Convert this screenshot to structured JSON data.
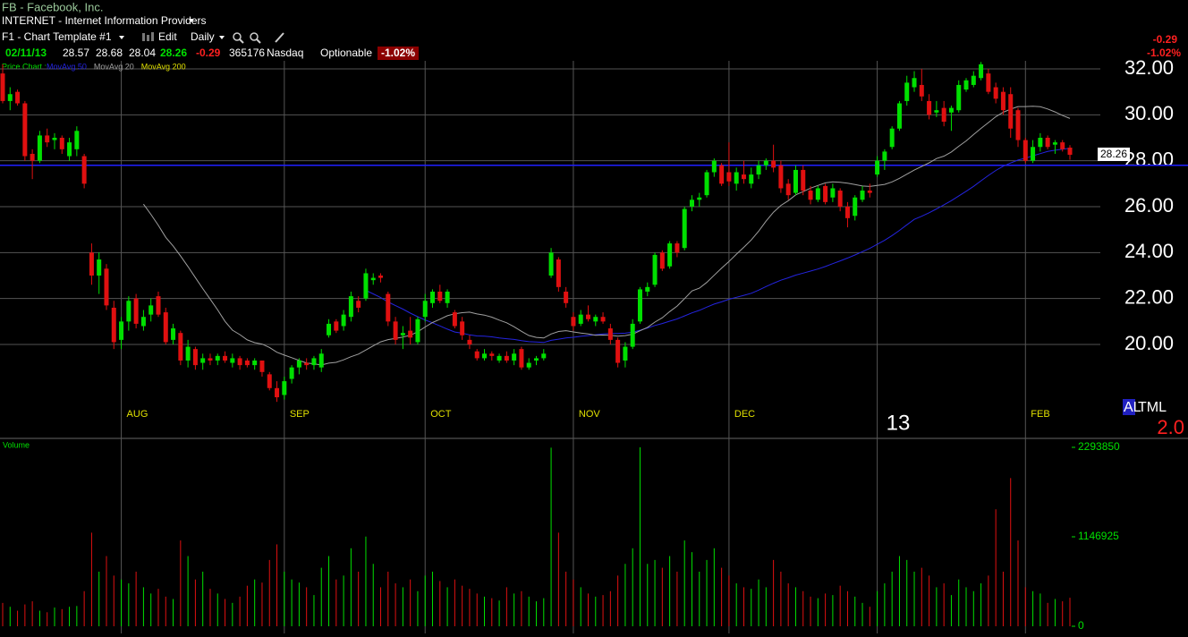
{
  "header": {
    "symbol": "FB - Facebook, Inc.",
    "industry": "INTERNET - Internet Information Providers",
    "template": "F1 - Chart Template #1",
    "edit": "Edit",
    "period": "Daily",
    "date": "02/11/13",
    "open": "28.57",
    "high": "28.68",
    "low": "28.04",
    "last": "28.26",
    "change": "-0.29",
    "volume": "365176",
    "exchange": "Nasdaq",
    "optionable": "Optionable",
    "change_percent": "-1.02%",
    "side_change": "-0.29",
    "side_change_percent": "-1.02%",
    "price_chart_label": "Price Chart :",
    "volume_label": "Volume",
    "badge_a": "AL",
    "badge_b": "TML",
    "badge_value": "2.0"
  },
  "chart_data": {
    "type": "candlestick",
    "categories": [
      null,
      null,
      null,
      null,
      null,
      null,
      null,
      null,
      null,
      null,
      null,
      null,
      null,
      null,
      null,
      null,
      "AUG",
      null,
      null,
      null,
      null,
      null,
      null,
      null,
      null,
      null,
      null,
      null,
      null,
      null,
      null,
      null,
      null,
      null,
      null,
      null,
      null,
      null,
      "SEP",
      null,
      null,
      null,
      null,
      null,
      null,
      null,
      null,
      null,
      null,
      null,
      null,
      null,
      null,
      null,
      null,
      null,
      null,
      "OCT",
      null,
      null,
      null,
      null,
      null,
      null,
      null,
      null,
      null,
      null,
      null,
      null,
      null,
      null,
      null,
      null,
      null,
      null,
      null,
      "NOV",
      null,
      null,
      null,
      null,
      null,
      null,
      null,
      null,
      null,
      null,
      null,
      null,
      null,
      null,
      null,
      null,
      null,
      null,
      null,
      null,
      "DEC",
      null,
      null,
      null,
      null,
      null,
      null,
      null,
      null,
      null,
      null,
      null,
      null,
      null,
      null,
      null,
      null,
      null,
      null,
      null,
      "13",
      null,
      null,
      null,
      null,
      null,
      null,
      null,
      null,
      null,
      null,
      null,
      null,
      null,
      null,
      null,
      null,
      null,
      null,
      null,
      "FEB",
      null,
      null,
      null,
      null,
      null,
      null
    ],
    "open": [
      31.8,
      30.6,
      31.0,
      30.5,
      28.3,
      28.0,
      29.1,
      28.9,
      29.0,
      28.2,
      28.5,
      28.2,
      24.0,
      23.0,
      23.3,
      21.6,
      20.2,
      21.0,
      22.0,
      20.8,
      21.3,
      22.1,
      21.4,
      20.2,
      20.5,
      19.3,
      19.8,
      19.2,
      19.4,
      19.3,
      19.5,
      19.2,
      19.4,
      19.3,
      19.1,
      19.3,
      18.7,
      18.1,
      17.8,
      18.5,
      19.0,
      19.2,
      19.1,
      19.0,
      20.4,
      21.0,
      20.8,
      21.2,
      21.9,
      22.0,
      22.8,
      23.0,
      22.2,
      21.0,
      20.4,
      20.6,
      20.1,
      21.2,
      21.8,
      22.3,
      21.8,
      21.4,
      21.0,
      20.2,
      19.7,
      19.4,
      19.6,
      19.3,
      19.5,
      19.3,
      19.8,
      19.0,
      19.3,
      19.4,
      23.0,
      23.7,
      22.3,
      21.2,
      20.9,
      21.3,
      21.0,
      21.2,
      20.7,
      20.2,
      19.3,
      19.9,
      21.0,
      22.3,
      22.6,
      24.0,
      23.4,
      24.4,
      24.2,
      26.0,
      26.3,
      26.5,
      27.5,
      27.8,
      27.5,
      27.0,
      27.4,
      27.0,
      27.4,
      27.8,
      28.0,
      27.8,
      27.0,
      26.6,
      27.6,
      26.7,
      26.3,
      26.9,
      26.4,
      26.7,
      26.0,
      25.6,
      26.3,
      26.7,
      27.4,
      28.0,
      28.6,
      29.4,
      30.6,
      31.2,
      31.3,
      30.6,
      30.1,
      30.3,
      30.1,
      30.2,
      31.1,
      31.3,
      31.6,
      31.8,
      31.2,
      31.0,
      30.9,
      30.2,
      28.9,
      28.0,
      28.6,
      29.0,
      28.7,
      28.8,
      28.57
    ],
    "high": [
      32.2,
      31.2,
      31.1,
      30.6,
      28.5,
      29.3,
      29.4,
      29.2,
      29.1,
      29.0,
      29.5,
      28.3,
      24.4,
      24.0,
      23.5,
      21.9,
      21.2,
      22.1,
      22.2,
      21.5,
      22.0,
      22.3,
      21.6,
      20.9,
      20.6,
      20.2,
      19.9,
      19.6,
      19.6,
      19.6,
      19.7,
      19.6,
      19.5,
      19.4,
      19.4,
      19.3,
      18.8,
      18.4,
      18.6,
      19.1,
      19.4,
      19.4,
      19.5,
      19.8,
      21.1,
      21.1,
      21.5,
      22.3,
      22.1,
      23.3,
      23.1,
      23.1,
      22.3,
      21.2,
      20.8,
      21.2,
      21.2,
      22.2,
      22.4,
      22.6,
      22.4,
      21.5,
      21.2,
      20.4,
      19.8,
      19.8,
      19.7,
      19.6,
      19.7,
      19.8,
      19.9,
      19.4,
      19.5,
      19.8,
      24.2,
      23.8,
      22.5,
      21.4,
      21.5,
      21.7,
      21.3,
      21.4,
      20.9,
      20.3,
      20.1,
      21.1,
      22.5,
      22.7,
      24.0,
      24.1,
      24.5,
      24.5,
      26.0,
      26.5,
      26.6,
      27.6,
      28.1,
      27.9,
      28.8,
      27.7,
      28.0,
      27.7,
      28.0,
      28.1,
      28.7,
      28.0,
      27.2,
      27.8,
      27.8,
      26.9,
      26.9,
      27.0,
      27.0,
      26.8,
      26.2,
      26.5,
      26.9,
      27.0,
      28.2,
      28.5,
      29.5,
      30.6,
      31.7,
      31.9,
      32.0,
      30.9,
      30.6,
      30.6,
      30.4,
      31.5,
      31.6,
      31.9,
      32.3,
      32.0,
      31.4,
      31.2,
      31.2,
      30.3,
      29.0,
      28.9,
      29.2,
      29.1,
      28.9,
      28.9,
      28.68
    ],
    "low": [
      30.5,
      30.2,
      30.4,
      28.0,
      27.2,
      27.9,
      28.6,
      28.5,
      28.3,
      28.0,
      28.2,
      26.8,
      22.6,
      22.2,
      21.5,
      19.8,
      19.8,
      20.6,
      20.7,
      20.6,
      21.0,
      21.2,
      20.0,
      20.0,
      19.1,
      19.0,
      18.9,
      18.9,
      19.1,
      19.1,
      19.2,
      19.0,
      18.9,
      19.0,
      18.9,
      18.6,
      18.0,
      17.5,
      17.6,
      18.3,
      18.7,
      18.9,
      18.9,
      18.8,
      20.3,
      20.5,
      20.6,
      21.0,
      21.4,
      21.9,
      22.6,
      22.7,
      20.8,
      20.0,
      19.8,
      20.0,
      20.0,
      21.0,
      21.6,
      21.8,
      21.6,
      20.7,
      20.2,
      19.8,
      19.3,
      19.3,
      19.3,
      19.2,
      19.2,
      19.1,
      18.9,
      18.9,
      19.1,
      19.3,
      22.9,
      22.3,
      21.6,
      20.6,
      20.8,
      21.0,
      20.8,
      20.9,
      20.0,
      19.0,
      19.0,
      19.8,
      20.9,
      22.1,
      22.5,
      23.2,
      23.3,
      23.8,
      24.1,
      25.8,
      26.0,
      26.4,
      27.3,
      26.9,
      26.9,
      26.7,
      27.0,
      26.8,
      27.2,
      27.6,
      27.5,
      26.6,
      26.3,
      26.5,
      26.5,
      26.1,
      26.2,
      26.1,
      26.2,
      25.8,
      25.1,
      25.4,
      26.2,
      26.4,
      27.3,
      27.6,
      28.5,
      29.3,
      30.4,
      31.0,
      30.6,
      29.8,
      29.9,
      29.5,
      29.3,
      30.1,
      31.0,
      31.2,
      31.5,
      30.9,
      30.5,
      30.0,
      29.0,
      28.6,
      27.9,
      27.9,
      28.4,
      28.5,
      28.3,
      28.4,
      28.04
    ],
    "close": [
      30.6,
      30.9,
      30.5,
      28.2,
      28.0,
      29.1,
      28.8,
      29.0,
      28.5,
      28.8,
      29.3,
      27.0,
      23.0,
      23.7,
      21.7,
      20.1,
      21.0,
      21.9,
      20.9,
      21.2,
      21.7,
      21.3,
      20.1,
      20.7,
      19.3,
      19.9,
      19.1,
      19.4,
      19.3,
      19.5,
      19.3,
      19.4,
      19.1,
      19.1,
      19.3,
      18.8,
      18.1,
      17.7,
      18.4,
      19.0,
      19.3,
      19.1,
      19.4,
      19.6,
      20.9,
      20.6,
      21.3,
      22.1,
      21.6,
      23.1,
      22.9,
      22.9,
      21.0,
      20.2,
      20.5,
      20.3,
      21.1,
      21.9,
      22.3,
      21.9,
      22.3,
      20.8,
      20.4,
      20.0,
      19.4,
      19.6,
      19.5,
      19.5,
      19.3,
      19.6,
      19.0,
      19.2,
      19.4,
      19.6,
      24.0,
      22.5,
      21.8,
      20.8,
      21.3,
      21.1,
      21.2,
      21.0,
      20.2,
      19.2,
      19.9,
      20.9,
      22.4,
      22.5,
      23.9,
      23.3,
      24.4,
      24.0,
      25.9,
      26.3,
      26.4,
      27.5,
      28.0,
      27.0,
      27.1,
      27.5,
      27.2,
      27.4,
      27.8,
      28.0,
      27.7,
      26.8,
      26.5,
      27.6,
      26.7,
      26.3,
      26.8,
      26.2,
      26.8,
      26.0,
      25.5,
      26.4,
      26.7,
      26.6,
      28.0,
      28.4,
      29.4,
      30.5,
      31.4,
      31.6,
      30.8,
      30.0,
      30.2,
      29.7,
      30.3,
      31.3,
      31.5,
      31.7,
      32.2,
      31.0,
      30.7,
      30.2,
      29.4,
      28.9,
      28.0,
      28.6,
      29.0,
      28.6,
      28.8,
      28.5,
      28.26
    ],
    "up_color": "#00e000",
    "down_color": "#e01010",
    "ylim": [
      15.91,
      32.35
    ],
    "yticks": [
      {
        "value": 20,
        "label": "20.00"
      },
      {
        "value": 22,
        "label": "22.00"
      },
      {
        "value": 24,
        "label": "24.00"
      },
      {
        "value": 26,
        "label": "26.00"
      },
      {
        "value": 28,
        "label": "28.00"
      },
      {
        "value": 30,
        "label": "30.00"
      },
      {
        "value": 32,
        "label": "32.00"
      }
    ],
    "grid": true,
    "reference_line": {
      "value": 27.8,
      "color": "#2020ff"
    },
    "moving_averages": [
      {
        "name": "MovAvg 50",
        "color": "#2424e0",
        "period": 50
      },
      {
        "name": "MovAvg 20",
        "color": "#a0a0a0",
        "period": 20
      },
      {
        "name": "MovAvg 200",
        "color": "#e0e000",
        "period": 200
      }
    ],
    "volume": {
      "values": [
        300000,
        250000,
        200000,
        280000,
        320000,
        200000,
        180000,
        240000,
        220000,
        250000,
        260000,
        450000,
        1200000,
        700000,
        900000,
        650000,
        600000,
        550000,
        700000,
        500000,
        420000,
        480000,
        380000,
        350000,
        1100000,
        900000,
        600000,
        700000,
        480000,
        420000,
        350000,
        300000,
        380000,
        520000,
        600000,
        560000,
        850000,
        1050000,
        700000,
        600000,
        560000,
        500000,
        400000,
        750000,
        900000,
        600000,
        650000,
        1000000,
        700000,
        1150000,
        800000,
        500000,
        700000,
        550000,
        500000,
        600000,
        450000,
        650000,
        700000,
        580000,
        500000,
        600000,
        520000,
        480000,
        420000,
        380000,
        360000,
        330000,
        500000,
        420000,
        450000,
        380000,
        320000,
        360000,
        2290000,
        1200000,
        700000,
        600000,
        500000,
        420000,
        380000,
        400000,
        450000,
        650000,
        800000,
        1000000,
        2293850,
        800000,
        850000,
        750000,
        900000,
        700000,
        1100000,
        950000,
        700000,
        850000,
        1000000,
        750000,
        650000,
        550000,
        500000,
        480000,
        600000,
        500000,
        850000,
        700000,
        550000,
        500000,
        450000,
        380000,
        360000,
        420000,
        400000,
        520000,
        450000,
        380000,
        300000,
        250000,
        450000,
        550000,
        700000,
        900000,
        850000,
        700000,
        750000,
        650000,
        500000,
        550000,
        400000,
        600000,
        500000,
        450000,
        550000,
        650000,
        1500000,
        700000,
        1900000,
        1100000,
        500000,
        450000,
        420000,
        300000,
        350000,
        320000,
        365176
      ],
      "ylim": [
        0,
        2293850
      ],
      "yticks": [
        0,
        1146925,
        2293850
      ]
    }
  }
}
